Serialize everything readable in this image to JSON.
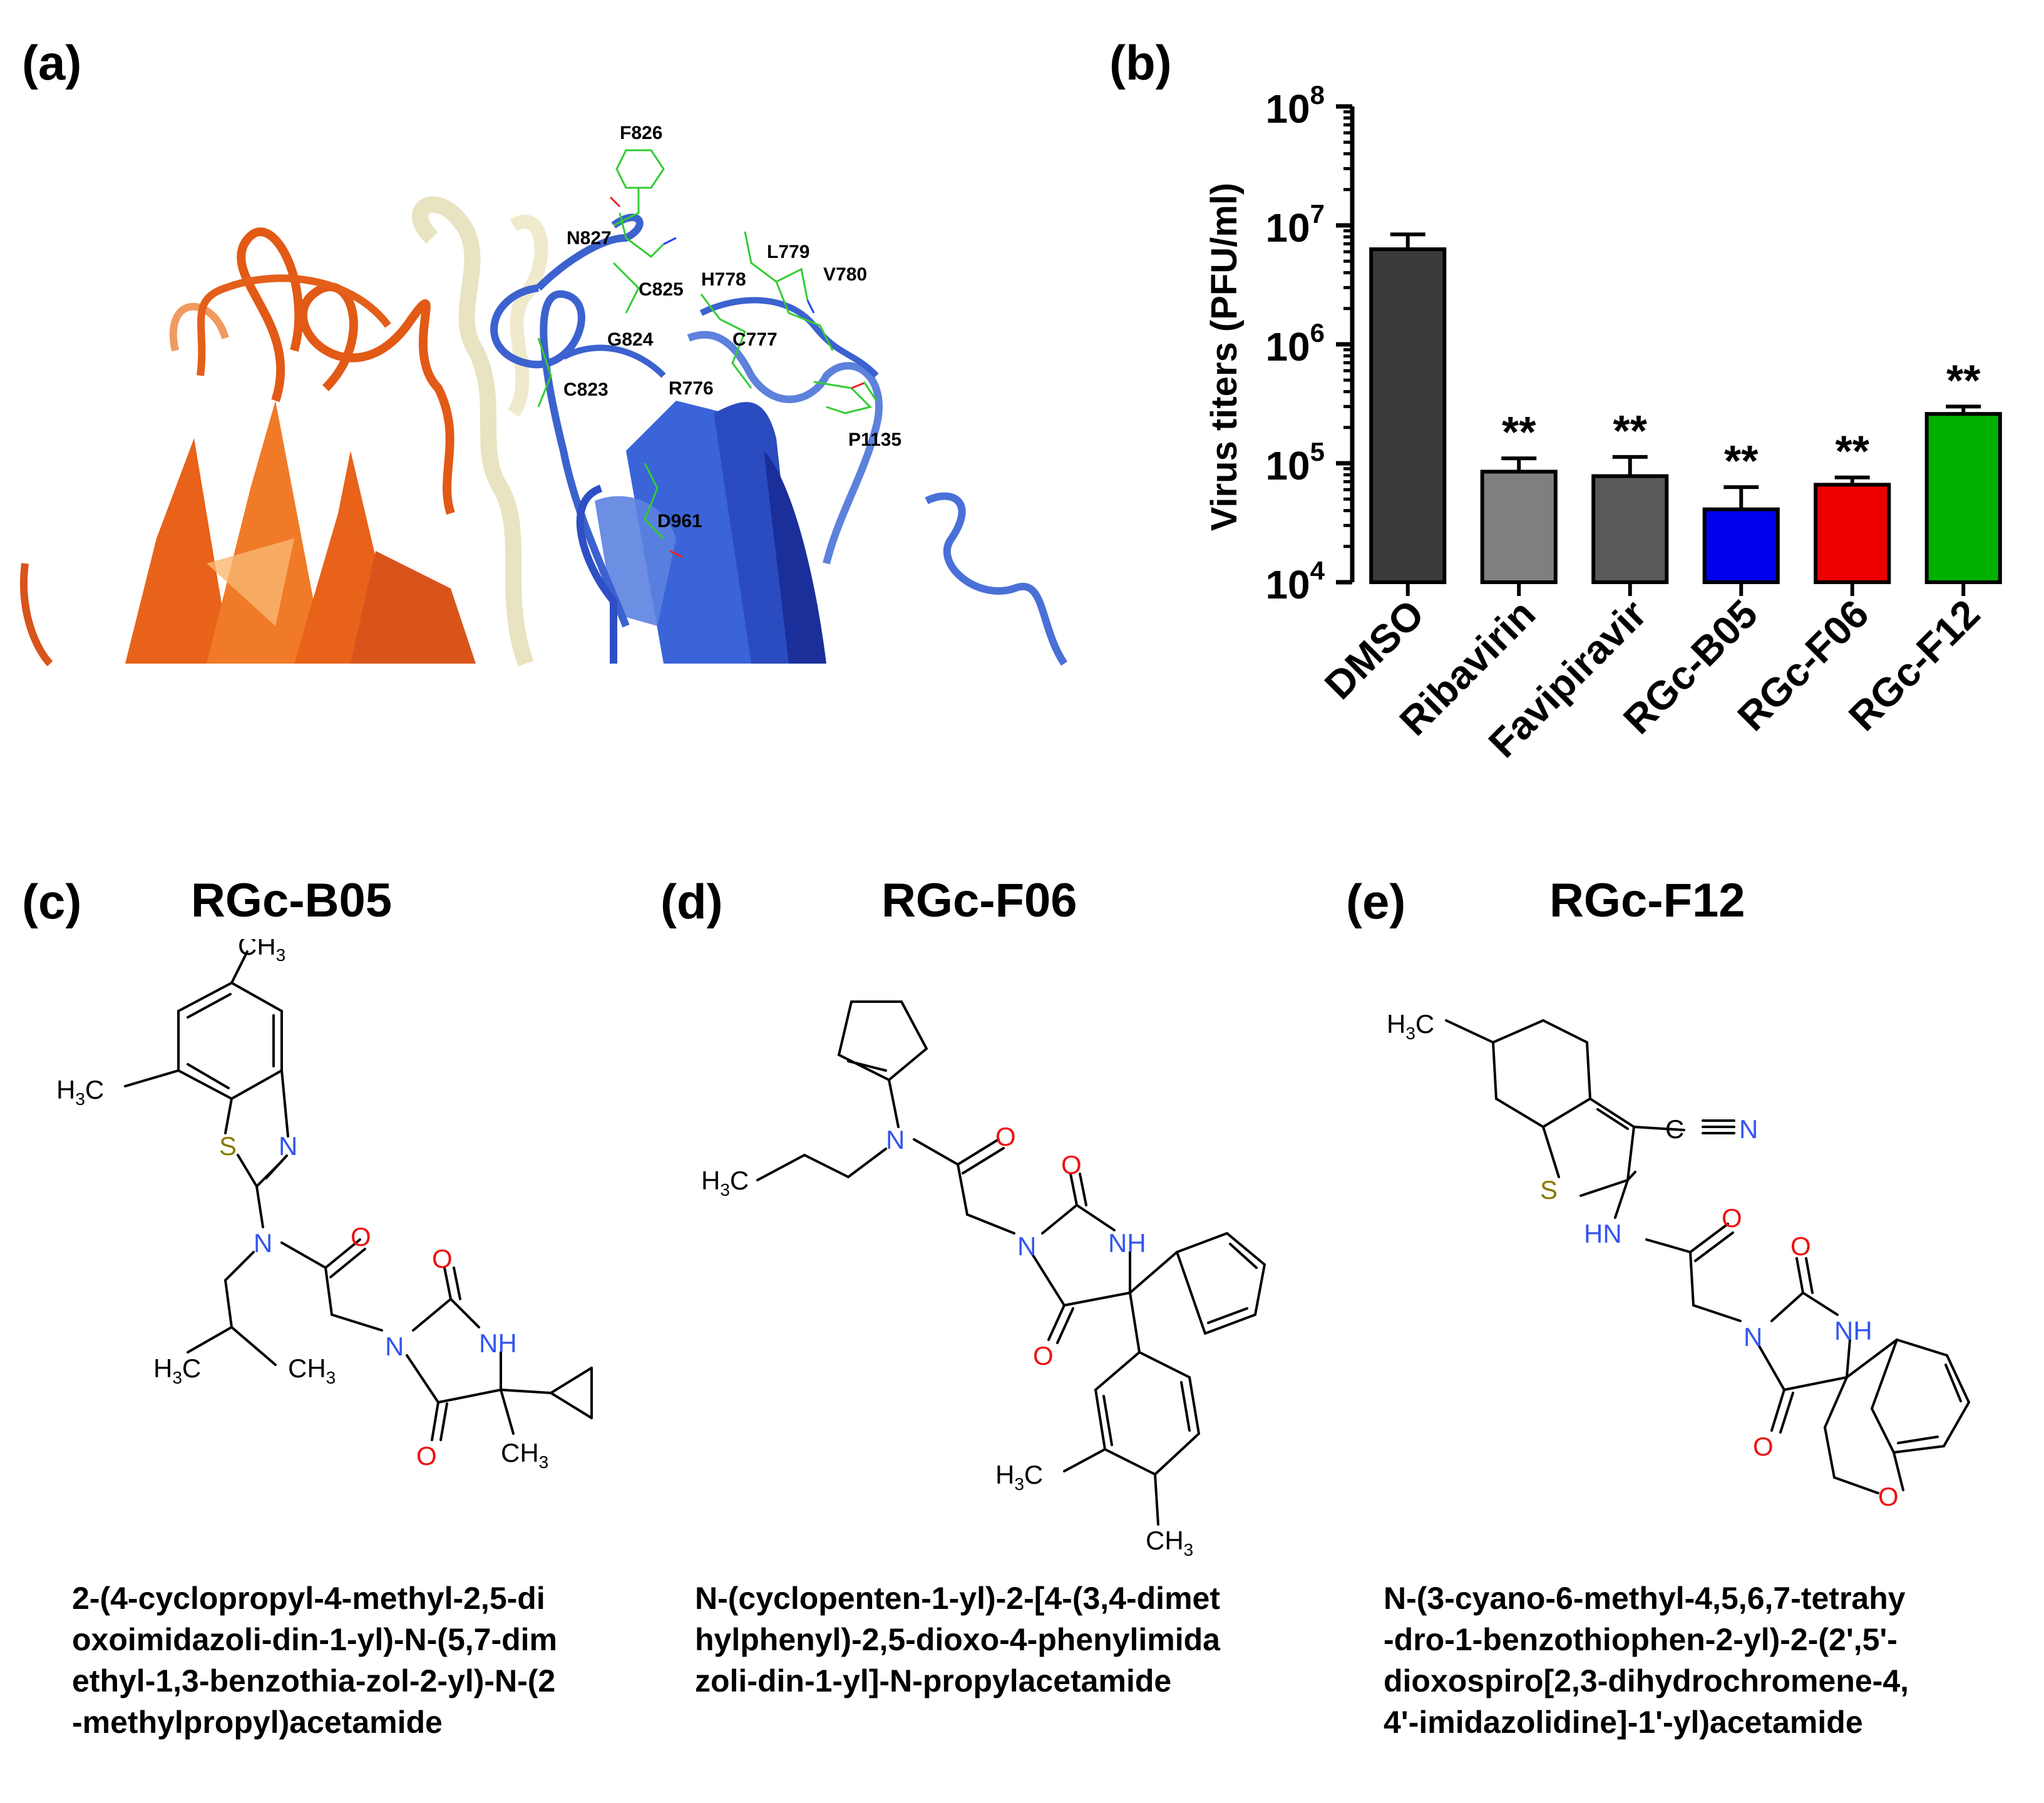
{
  "panels": {
    "a": {
      "letter": "(a)",
      "residues": [
        "F826",
        "N827",
        "C825",
        "H778",
        "L779",
        "V780",
        "G824",
        "C777",
        "C823",
        "R776",
        "P1135",
        "D961"
      ]
    },
    "b": {
      "letter": "(b)"
    },
    "c": {
      "letter": "(c)",
      "title": "RGc-B05",
      "name_lines": [
        "2-(4-cyclopropyl-4-methyl-2,5-di",
        "oxoimidazoli-din-1-yl)-N-(5,7-dim",
        "ethyl-1,3-benzothia-zol-2-yl)-N-(2",
        "-methylpropyl)acetamide"
      ]
    },
    "d": {
      "letter": "(d)",
      "title": "RGc-F06",
      "name_lines": [
        "N-(cyclopenten-1-yl)-2-[4-(3,4-dimet",
        "hylphenyl)-2,5-dioxo-4-phenylimida",
        "zoli-din-1-yl]-N-propylacetamide"
      ]
    },
    "e": {
      "letter": "(e)",
      "title": "RGc-F12",
      "name_lines": [
        "N-(3-cyano-6-methyl-4,5,6,7-tetrahy",
        "-dro-1-benzothiophen-2-yl)-2-(2',5'-",
        "dioxospiro[2,3-dihydrochromene-4,",
        "4'-imidazolidine]-1'-yl)acetamide"
      ]
    }
  },
  "chart_data": {
    "type": "bar",
    "ylabel": "Virus titers (PFU/ml)",
    "yscale": "log",
    "ylim": [
      10000,
      100000000
    ],
    "yticks": [
      {
        "value": 10000,
        "base": "10",
        "exp": "4"
      },
      {
        "value": 100000,
        "base": "10",
        "exp": "5"
      },
      {
        "value": 1000000,
        "base": "10",
        "exp": "6"
      },
      {
        "value": 10000000,
        "base": "10",
        "exp": "7"
      },
      {
        "value": 100000000,
        "base": "10",
        "exp": "8"
      }
    ],
    "categories": [
      "DMSO",
      "Ribavirin",
      "Favipiravir",
      "RGc-B05",
      "RGc-F06",
      "RGc-F12"
    ],
    "values": [
      6300000,
      85000,
      78000,
      41000,
      66000,
      260000
    ],
    "errors": [
      2100000,
      25000,
      35000,
      22000,
      10000,
      40000
    ],
    "significance": [
      "",
      "**",
      "**",
      "**",
      "**",
      "**"
    ],
    "colors": [
      "#3a3a3a",
      "#7f7f7f",
      "#5a5a5a",
      "#0000ee",
      "#ee0000",
      "#00b000"
    ]
  }
}
